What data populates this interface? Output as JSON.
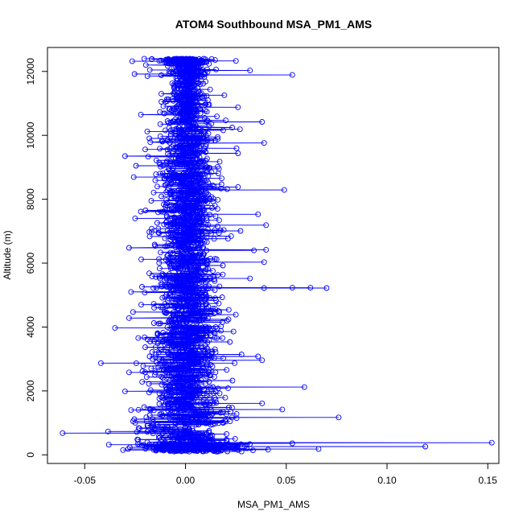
{
  "chart_data": {
    "type": "scatter",
    "title": "ATOM4 Southbound MSA_PM1_AMS",
    "xlabel": "MSA_PM1_AMS",
    "ylabel": "Altitude (m)",
    "xlim": [
      -0.0685,
      0.1555
    ],
    "ylim": [
      -270,
      12750
    ],
    "x_ticks": [
      -0.05,
      0.0,
      0.05,
      0.1,
      0.15
    ],
    "x_tick_labels": [
      "-0.05",
      "0.00",
      "0.05",
      "0.10",
      "0.15"
    ],
    "y_ticks": [
      0,
      2000,
      4000,
      6000,
      8000,
      10000,
      12000
    ],
    "y_tick_labels": [
      "0",
      "2000",
      "4000",
      "6000",
      "8000",
      "10000",
      "12000"
    ],
    "grid": false,
    "legend": "none",
    "series_color": "#0000ff",
    "markers": "open-circle",
    "connected": true,
    "points": [
      [
        0.152,
        380
      ],
      [
        0.119,
        260
      ],
      [
        0.066,
        180
      ],
      [
        0.053,
        360
      ],
      [
        0.041,
        160
      ],
      [
        -0.061,
        680
      ],
      [
        -0.042,
        2870
      ],
      [
        -0.035,
        3970
      ],
      [
        -0.02,
        9560
      ],
      [
        -0.03,
        9350
      ],
      [
        -0.028,
        2580
      ],
      [
        -0.025,
        7400
      ],
      [
        0.076,
        1170
      ],
      [
        0.059,
        2120
      ],
      [
        0.053,
        11890
      ],
      [
        0.048,
        1420
      ],
      [
        0.07,
        5220
      ],
      [
        0.062,
        5230
      ],
      [
        0.053,
        5230
      ],
      [
        0.049,
        8290
      ],
      [
        0.04,
        7190
      ],
      [
        0.039,
        5220
      ],
      [
        0.04,
        6420
      ],
      [
        0.032,
        12030
      ],
      [
        0.025,
        12330
      ],
      [
        -0.013,
        12330
      ],
      [
        -0.012,
        11880
      ],
      [
        -0.028,
        6480
      ],
      [
        -0.027,
        5100
      ],
      [
        -0.022,
        4700
      ],
      [
        -0.026,
        4470
      ],
      [
        -0.028,
        4280
      ],
      [
        -0.02,
        3370
      ],
      [
        -0.03,
        1990
      ],
      [
        -0.027,
        1400
      ],
      [
        -0.026,
        1050
      ],
      [
        -0.031,
        150
      ],
      [
        -0.021,
        2780
      ],
      [
        -0.022,
        6120
      ],
      [
        -0.018,
        5680
      ],
      [
        -0.017,
        7950
      ],
      [
        -0.015,
        8590
      ],
      [
        -0.019,
        10120
      ],
      [
        -0.011,
        10910
      ],
      [
        -0.012,
        11300
      ],
      [
        0.038,
        1610
      ],
      [
        0.038,
        2960
      ],
      [
        0.039,
        6030
      ],
      [
        0.039,
        9760
      ],
      [
        0.038,
        10420
      ],
      [
        0.036,
        3080
      ],
      [
        0.032,
        5520
      ],
      [
        0.036,
        7530
      ],
      [
        0.027,
        10190
      ],
      [
        0.026,
        10880
      ],
      [
        0.012,
        8020
      ],
      [
        0.015,
        4000
      ]
    ]
  }
}
